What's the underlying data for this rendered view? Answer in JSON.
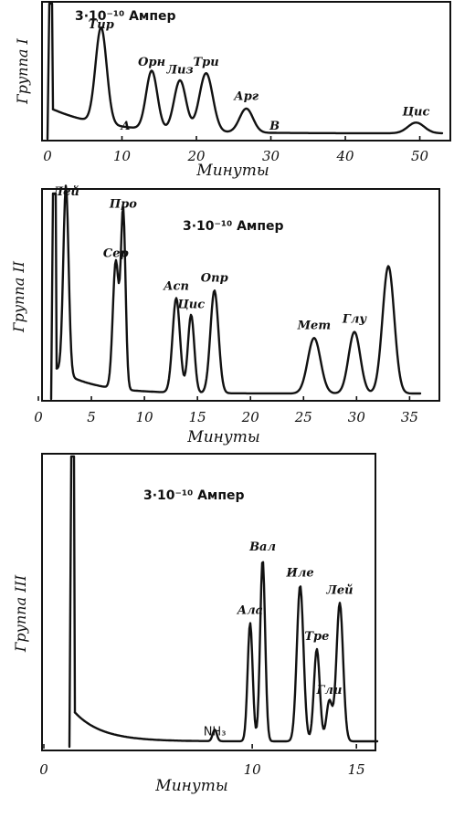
{
  "chart_data": [
    {
      "type": "line",
      "panel": "group1",
      "ylabel": "Группа I",
      "xlabel": "Минуты",
      "scale_label": "3·10⁻¹⁰ Ампер",
      "xlim": [
        0,
        53
      ],
      "xticks": [
        0,
        10,
        20,
        30,
        40,
        50
      ],
      "peaks": [
        {
          "label": "Тир",
          "x": 7.2,
          "height": 0.72
        },
        {
          "label": "А",
          "x": 10.5,
          "height": 0.0
        },
        {
          "label": "Орн",
          "x": 14.0,
          "height": 0.44
        },
        {
          "label": "Лиз",
          "x": 17.8,
          "height": 0.38
        },
        {
          "label": "Три",
          "x": 21.3,
          "height": 0.44
        },
        {
          "label": "Арг",
          "x": 26.7,
          "height": 0.18
        },
        {
          "label": "В",
          "x": 30.5,
          "height": 0.0
        },
        {
          "label": "Цис",
          "x": 49.5,
          "height": 0.08
        }
      ]
    },
    {
      "type": "line",
      "panel": "group2",
      "ylabel": "Группа II",
      "xlabel": "Минуты",
      "scale_label": "3·10⁻¹⁰ Ампер",
      "xlim": [
        0,
        36
      ],
      "xticks": [
        0,
        5,
        10,
        15,
        20,
        25,
        30,
        35
      ],
      "peaks": [
        {
          "label": "Лей",
          "x": 2.6,
          "height": 0.92
        },
        {
          "label": "Сер",
          "x": 7.3,
          "height": 0.62
        },
        {
          "label": "Про",
          "x": 8.0,
          "height": 0.86
        },
        {
          "label": "Асп",
          "x": 13.0,
          "height": 0.46
        },
        {
          "label": "Цис",
          "x": 14.4,
          "height": 0.38
        },
        {
          "label": "Опр",
          "x": 16.6,
          "height": 0.5
        },
        {
          "label": "Мет",
          "x": 26.0,
          "height": 0.27
        },
        {
          "label": "Глу",
          "x": 29.8,
          "height": 0.3
        },
        {
          "label": "",
          "x": 33.0,
          "height": 0.62
        }
      ]
    },
    {
      "type": "line",
      "panel": "group3",
      "ylabel": "Группа III",
      "xlabel": "Минуты",
      "scale_label": "3·10⁻¹⁰ Ампер",
      "xlim": [
        0,
        16
      ],
      "xticks": [
        0,
        10,
        15
      ],
      "peaks": [
        {
          "label": "NH₃",
          "x": 8.2,
          "height": 0.04
        },
        {
          "label": "Ала",
          "x": 9.9,
          "height": 0.41
        },
        {
          "label": "Вал",
          "x": 10.5,
          "height": 0.63
        },
        {
          "label": "Иле",
          "x": 12.3,
          "height": 0.54
        },
        {
          "label": "Тре",
          "x": 13.1,
          "height": 0.32
        },
        {
          "label": "Гли",
          "x": 13.7,
          "height": 0.14
        },
        {
          "label": "Лей",
          "x": 14.2,
          "height": 0.48
        }
      ]
    }
  ]
}
